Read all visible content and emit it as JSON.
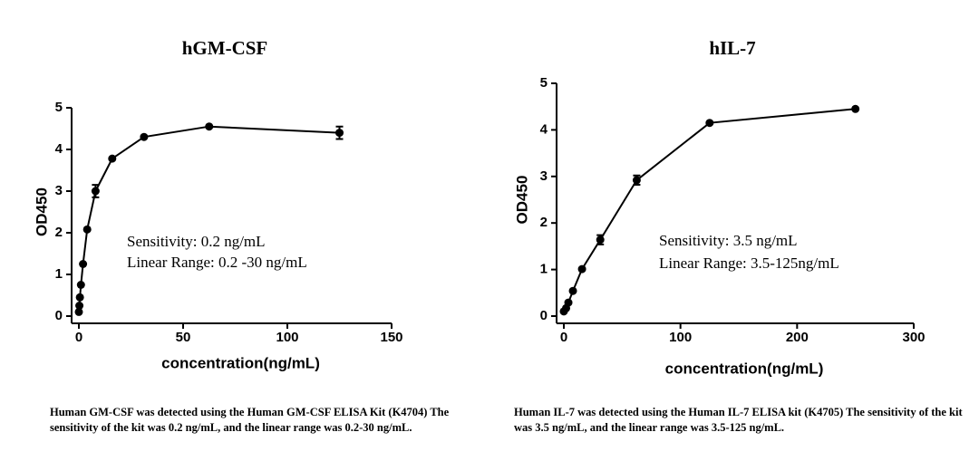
{
  "chart_data": [
    {
      "type": "line",
      "title": "hGM-CSF",
      "x_label": "concentration(ng/mL)",
      "y_label": "OD450",
      "annotations": [
        "Sensitivity: 0.2 ng/mL",
        "Linear Range: 0.2 -30 ng/mL"
      ],
      "caption": "Human GM-CSF was detected using the Human GM-CSF ELISA Kit (K4704) The sensitivity of the kit was 0.2 ng/mL, and the linear range was 0.2-30 ng/mL.",
      "xlim": [
        0,
        150
      ],
      "xticks": [
        0,
        50,
        100,
        150
      ],
      "ylim": [
        0,
        5
      ],
      "yticks": [
        0,
        1,
        2,
        3,
        4,
        5
      ],
      "series": [
        {
          "color": "#000000",
          "x": [
            0,
            0.25,
            0.5,
            1,
            2,
            4,
            8,
            16,
            31.25,
            62.5,
            125
          ],
          "values": [
            0.1,
            0.25,
            0.45,
            0.75,
            1.25,
            2.08,
            3.0,
            3.78,
            4.3,
            4.55,
            4.4
          ],
          "errors": [
            null,
            null,
            null,
            null,
            null,
            null,
            0.15,
            null,
            null,
            null,
            0.15
          ]
        }
      ]
    },
    {
      "type": "line",
      "title": "hIL-7",
      "x_label": "concentration(ng/mL)",
      "y_label": "OD450",
      "annotations": [
        "Sensitivity: 3.5 ng/mL",
        "Linear Range: 3.5-125ng/mL"
      ],
      "caption": "Human IL-7 was detected using the Human IL-7 ELISA kit (K4705) The sensitivity of the kit was 3.5 ng/mL, and the linear range was 3.5-125 ng/mL.",
      "xlim": [
        0,
        300
      ],
      "xticks": [
        0,
        100,
        200,
        300
      ],
      "ylim": [
        0,
        5
      ],
      "yticks": [
        0,
        1,
        2,
        3,
        4,
        5
      ],
      "series": [
        {
          "color": "#000000",
          "x": [
            0,
            1.95,
            3.9,
            7.8,
            15.6,
            31.25,
            62.5,
            125,
            250
          ],
          "values": [
            0.1,
            0.17,
            0.29,
            0.54,
            1.01,
            1.64,
            2.92,
            4.15,
            4.45
          ],
          "errors": [
            null,
            null,
            null,
            null,
            null,
            0.1,
            0.1,
            null,
            null
          ]
        }
      ]
    }
  ]
}
